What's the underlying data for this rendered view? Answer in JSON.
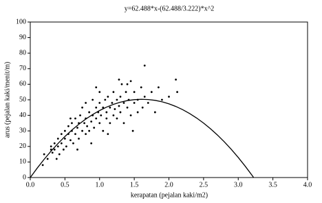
{
  "chart_data": {
    "type": "scatter",
    "title": "y=62.488*x-(62.488/3.222)*x^2",
    "x_label": "kerapatan (pejalan kaki/m2)",
    "y_label": "arus (pejalan kaki/menit/m)",
    "xlim": [
      0,
      4
    ],
    "ylim": [
      0,
      100
    ],
    "xticks": [
      {
        "value": 0,
        "label": "0.0"
      },
      0.5,
      {
        "value": 1,
        "label": "1.0"
      },
      1.5,
      {
        "value": 2,
        "label": "2.0"
      },
      2.5,
      {
        "value": 3,
        "label": "3.0"
      },
      3.5,
      {
        "value": 4,
        "label": "4.0"
      }
    ],
    "yticks": [
      0,
      10,
      20,
      30,
      40,
      50,
      60,
      70,
      80,
      90,
      100
    ],
    "series": [
      {
        "type": "scatter",
        "color": "#000000",
        "x": [
          0.18,
          0.2,
          0.25,
          0.3,
          0.3,
          0.32,
          0.35,
          0.35,
          0.4,
          0.4,
          0.42,
          0.45,
          0.45,
          0.48,
          0.5,
          0.5,
          0.52,
          0.55,
          0.55,
          0.58,
          0.6,
          0.6,
          0.62,
          0.65,
          0.65,
          0.68,
          0.7,
          0.7,
          0.72,
          0.75,
          0.75,
          0.78,
          0.8,
          0.8,
          0.8,
          0.82,
          0.85,
          0.85,
          0.88,
          0.9,
          0.9,
          0.92,
          0.95,
          0.95,
          0.98,
          1.0,
          1.0,
          1.0,
          1.02,
          1.05,
          1.05,
          1.08,
          1.1,
          1.1,
          1.12,
          1.15,
          1.15,
          1.18,
          1.2,
          1.2,
          1.22,
          1.25,
          1.25,
          1.28,
          1.3,
          1.3,
          1.32,
          1.35,
          1.35,
          1.38,
          1.4,
          1.42,
          1.45,
          1.45,
          1.5,
          1.5,
          1.55,
          1.55,
          1.6,
          1.62,
          1.65,
          1.65,
          1.7,
          1.75,
          1.8,
          1.85,
          1.9,
          2.0,
          2.1,
          2.12,
          1.28,
          1.4,
          0.95,
          1.12,
          0.58,
          0.38,
          0.68,
          0.88,
          1.48
        ],
        "values": [
          8,
          15,
          12,
          18,
          20,
          16,
          22,
          18,
          20,
          25,
          15,
          22,
          28,
          18,
          25,
          30,
          20,
          28,
          33,
          24,
          30,
          35,
          22,
          28,
          38,
          32,
          25,
          35,
          40,
          30,
          45,
          35,
          28,
          38,
          48,
          33,
          42,
          30,
          36,
          40,
          50,
          32,
          45,
          38,
          42,
          48,
          35,
          55,
          40,
          45,
          30,
          50,
          42,
          38,
          52,
          45,
          35,
          48,
          40,
          55,
          44,
          50,
          38,
          46,
          52,
          42,
          60,
          48,
          35,
          55,
          45,
          50,
          62,
          40,
          48,
          55,
          42,
          50,
          58,
          45,
          72,
          52,
          48,
          55,
          42,
          58,
          50,
          52,
          63,
          55,
          63,
          60,
          58,
          28,
          38,
          12,
          18,
          22,
          30
        ]
      },
      {
        "type": "line",
        "color": "#000000",
        "x": [
          0,
          0.1,
          0.2,
          0.3,
          0.4,
          0.5,
          0.6,
          0.7,
          0.8,
          0.9,
          1.0,
          1.1,
          1.2,
          1.3,
          1.4,
          1.5,
          1.6,
          1.7,
          1.8,
          1.9,
          2.0,
          2.1,
          2.2,
          2.3,
          2.4,
          2.5,
          2.6,
          2.7,
          2.8,
          2.9,
          3.0,
          3.1,
          3.2,
          3.222
        ],
        "values": [
          0,
          6.06,
          11.72,
          17.0,
          21.89,
          26.4,
          30.51,
          34.24,
          37.58,
          40.53,
          43.09,
          45.27,
          47.06,
          48.46,
          49.47,
          50.09,
          50.33,
          50.18,
          49.64,
          48.72,
          47.4,
          45.7,
          43.6,
          41.13,
          38.26,
          35.01,
          31.37,
          27.34,
          22.92,
          18.12,
          12.92,
          7.33,
          1.37,
          0
        ]
      }
    ]
  }
}
